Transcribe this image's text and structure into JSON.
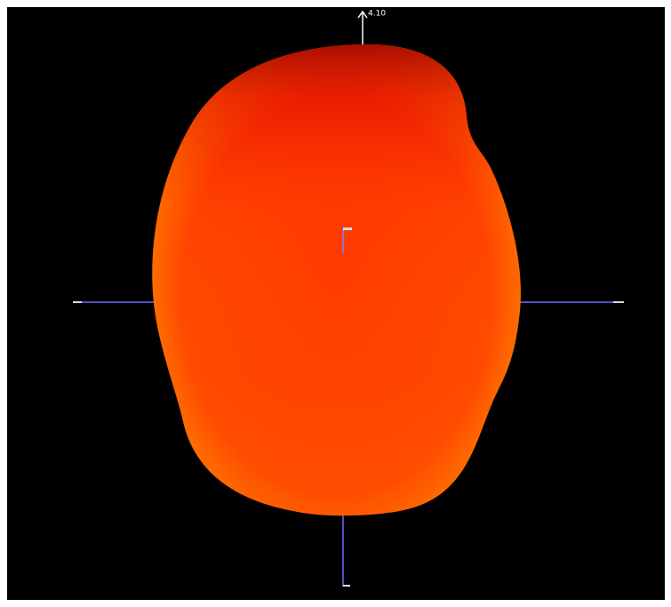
{
  "annotation": "4.10"
}
